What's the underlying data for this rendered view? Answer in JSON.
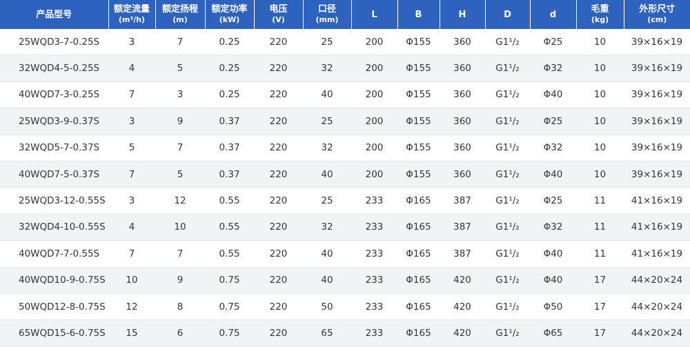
{
  "table": {
    "columns": [
      {
        "label": "产品型号"
      },
      {
        "label": "额定流量",
        "unit": "(m³/h)"
      },
      {
        "label": "额定扬程",
        "unit": "(m)"
      },
      {
        "label": "额定功率",
        "unit": "(kW)"
      },
      {
        "label": "电压",
        "unit": "(V)"
      },
      {
        "label": "口径",
        "unit": "(mm)"
      },
      {
        "label": "L"
      },
      {
        "label": "B"
      },
      {
        "label": "H"
      },
      {
        "label": "D"
      },
      {
        "label": "d"
      },
      {
        "label": "毛重",
        "unit": "(kg)"
      },
      {
        "label": "外形尺寸",
        "unit": "(cm)"
      }
    ],
    "rows": [
      [
        "25WQD3-7-0.25S",
        "3",
        "7",
        "0.25",
        "220",
        "25",
        "200",
        "Φ155",
        "360",
        "G1¹/₂",
        "Φ25",
        "10",
        "39×16×19"
      ],
      [
        "32WQD4-5-0.25S",
        "4",
        "5",
        "0.25",
        "220",
        "32",
        "200",
        "Φ155",
        "360",
        "G1¹/₂",
        "Φ32",
        "10",
        "39×16×19"
      ],
      [
        "40WQD7-3-0.25S",
        "7",
        "3",
        "0.25",
        "220",
        "40",
        "200",
        "Φ155",
        "360",
        "G1¹/₂",
        "Φ40",
        "10",
        "39×16×19"
      ],
      [
        "25WQD3-9-0.37S",
        "3",
        "9",
        "0.37",
        "220",
        "25",
        "200",
        "Φ155",
        "360",
        "G1¹/₂",
        "Φ25",
        "10",
        "39×16×19"
      ],
      [
        "32WQD5-7-0.37S",
        "5",
        "7",
        "0.37",
        "220",
        "32",
        "200",
        "Φ155",
        "360",
        "G1¹/₂",
        "Φ32",
        "10",
        "39×16×19"
      ],
      [
        "40WQD7-5-0.37S",
        "7",
        "5",
        "0.37",
        "220",
        "40",
        "200",
        "Φ155",
        "360",
        "G1¹/₂",
        "Φ40",
        "10",
        "39×16×19"
      ],
      [
        "25WQD3-12-0.55S",
        "3",
        "12",
        "0.55",
        "220",
        "25",
        "233",
        "Φ165",
        "387",
        "G1¹/₂",
        "Φ25",
        "11",
        "41×16×19"
      ],
      [
        "32WQD4-10-0.55S",
        "4",
        "10",
        "0.55",
        "220",
        "32",
        "233",
        "Φ165",
        "387",
        "G1¹/₂",
        "Φ32",
        "11",
        "41×16×19"
      ],
      [
        "40WQD7-7-0.55S",
        "7",
        "7",
        "0.55",
        "220",
        "40",
        "233",
        "Φ165",
        "387",
        "G1¹/₂",
        "Φ40",
        "11",
        "41×16×19"
      ],
      [
        "40WQD10-9-0.75S",
        "10",
        "9",
        "0.75",
        "220",
        "40",
        "233",
        "Φ165",
        "420",
        "G1¹/₂",
        "Φ40",
        "17",
        "44×20×24"
      ],
      [
        "50WQD12-8-0.75S",
        "12",
        "8",
        "0.75",
        "220",
        "50",
        "233",
        "Φ165",
        "420",
        "G1¹/₂",
        "Φ50",
        "17",
        "44×20×24"
      ],
      [
        "65WQD15-6-0.75S",
        "15",
        "6",
        "0.75",
        "220",
        "65",
        "233",
        "Φ165",
        "420",
        "G1¹/₂",
        "Φ65",
        "17",
        "44×20×24"
      ]
    ]
  }
}
